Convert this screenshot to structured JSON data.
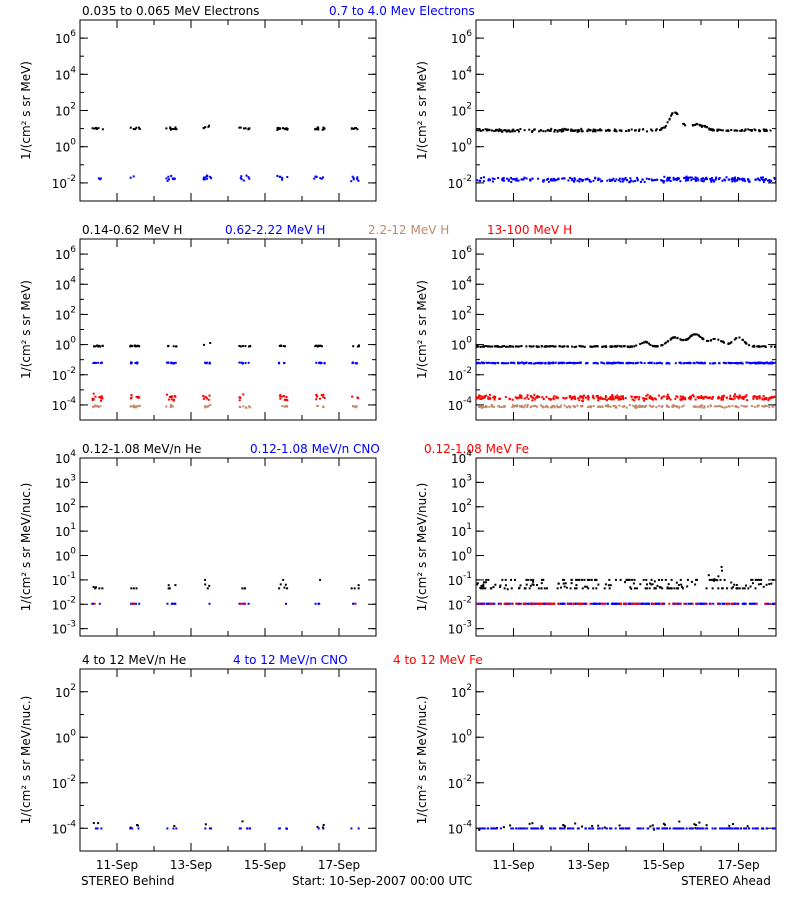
{
  "figure": {
    "footer": {
      "left": "STEREO Behind",
      "center": "Start: 10-Sep-2007 00:00 UTC",
      "right": "STEREO Ahead"
    },
    "xticks": [
      "11-Sep",
      "13-Sep",
      "15-Sep",
      "17-Sep"
    ]
  },
  "chart_data": [
    {
      "type": "scatter",
      "row": 1,
      "spacecraft": "STEREO Behind",
      "ylabel": "1/(cm² s sr MeV)",
      "yscale": "log",
      "ylim": [
        0.001,
        10000000
      ],
      "yticks": [
        {
          "v": 0.01,
          "b": "10",
          "e": "-2"
        },
        {
          "v": 1,
          "b": "10",
          "e": "0"
        },
        {
          "v": 100,
          "b": "10",
          "e": "2"
        },
        {
          "v": 10000,
          "b": "10",
          "e": "4"
        },
        {
          "v": 1000000,
          "b": "10",
          "e": "6"
        }
      ],
      "x_unit": "days since start",
      "xlim": [
        0,
        8
      ],
      "xticks": [
        1,
        3,
        5,
        7
      ],
      "legend": [
        {
          "name": "0.035 to 0.065 MeV Electrons",
          "color": "#000000"
        },
        {
          "name": "0.7 to 4.0 Mev Electrons",
          "color": "#0000ff"
        }
      ],
      "series": [
        {
          "name": "0.035 to 0.065 MeV Electrons",
          "color": "#000000",
          "level": 10,
          "spread": 0.12,
          "density": 26,
          "gaps": true,
          "bumps": [
            {
              "x": 3.7,
              "h": 0.25,
              "w": 0.25
            }
          ]
        },
        {
          "name": "0.7 to 4.0 Mev Electrons",
          "color": "#0000ff",
          "level": 0.018,
          "spread": 0.22,
          "density": 26,
          "gaps": true
        }
      ]
    },
    {
      "type": "scatter",
      "row": 1,
      "spacecraft": "STEREO Ahead",
      "ylabel": "1/(cm² s sr MeV)",
      "yscale": "log",
      "ylim": [
        0.001,
        10000000
      ],
      "yticks": [
        {
          "v": 0.01,
          "b": "10",
          "e": "-2"
        },
        {
          "v": 1,
          "b": "10",
          "e": "0"
        },
        {
          "v": 100,
          "b": "10",
          "e": "2"
        },
        {
          "v": 10000,
          "b": "10",
          "e": "4"
        },
        {
          "v": 1000000,
          "b": "10",
          "e": "6"
        }
      ],
      "x_unit": "days since start",
      "xlim": [
        0,
        8
      ],
      "xticks": [
        1,
        3,
        5,
        7
      ],
      "series": [
        {
          "name": "0.035 to 0.065 MeV Electrons",
          "color": "#000000",
          "level": 8,
          "spread": 0.1,
          "density": 30,
          "gaps": false,
          "bumps": [
            {
              "x": 5.3,
              "h": 1.0,
              "w": 0.2
            },
            {
              "x": 5.9,
              "h": 0.3,
              "w": 0.3
            }
          ]
        },
        {
          "name": "0.7 to 4.0 Mev Electrons",
          "color": "#0000ff",
          "level": 0.015,
          "spread": 0.2,
          "density": 34,
          "gaps": false
        }
      ]
    },
    {
      "type": "scatter",
      "row": 2,
      "spacecraft": "STEREO Behind",
      "ylabel": "1/(cm² s sr MeV)",
      "yscale": "log",
      "ylim": [
        1e-05,
        10000000
      ],
      "yticks": [
        {
          "v": 0.0001,
          "b": "10",
          "e": "-4"
        },
        {
          "v": 0.01,
          "b": "10",
          "e": "-2"
        },
        {
          "v": 1,
          "b": "10",
          "e": "0"
        },
        {
          "v": 100,
          "b": "10",
          "e": "2"
        },
        {
          "v": 10000,
          "b": "10",
          "e": "4"
        },
        {
          "v": 1000000,
          "b": "10",
          "e": "6"
        }
      ],
      "x_unit": "days since start",
      "xlim": [
        0,
        8
      ],
      "xticks": [
        1,
        3,
        5,
        7
      ],
      "legend": [
        {
          "name": "0.14-0.62 MeV H",
          "color": "#000000"
        },
        {
          "name": "0.62-2.22 MeV H",
          "color": "#0000ff"
        },
        {
          "name": "2.2-12 MeV H",
          "color": "#c08a6a"
        },
        {
          "name": "13-100 MeV H",
          "color": "#ff0000"
        }
      ],
      "series": [
        {
          "name": "0.14-0.62 MeV H",
          "color": "#000000",
          "level": 0.8,
          "spread": 0.06,
          "density": 26,
          "gaps": true,
          "bumps": [
            {
              "x": 3.7,
              "h": 0.35,
              "w": 0.25
            }
          ]
        },
        {
          "name": "0.62-2.22 MeV H",
          "color": "#0000ff",
          "level": 0.06,
          "spread": 0.06,
          "density": 26,
          "gaps": true
        },
        {
          "name": "2.2-12 MeV H",
          "color": "#c08a6a",
          "level": 8e-05,
          "spread": 0.12,
          "density": 20,
          "gaps": true
        },
        {
          "name": "13-100 MeV H",
          "color": "#ff0000",
          "level": 0.0003,
          "spread": 0.3,
          "density": 26,
          "gaps": true
        }
      ]
    },
    {
      "type": "scatter",
      "row": 2,
      "spacecraft": "STEREO Ahead",
      "ylabel": "1/(cm² s sr MeV)",
      "yscale": "log",
      "ylim": [
        1e-05,
        10000000
      ],
      "yticks": [
        {
          "v": 0.0001,
          "b": "10",
          "e": "-4"
        },
        {
          "v": 0.01,
          "b": "10",
          "e": "-2"
        },
        {
          "v": 1,
          "b": "10",
          "e": "0"
        },
        {
          "v": 100,
          "b": "10",
          "e": "2"
        },
        {
          "v": 10000,
          "b": "10",
          "e": "4"
        },
        {
          "v": 1000000,
          "b": "10",
          "e": "6"
        }
      ],
      "x_unit": "days since start",
      "xlim": [
        0,
        8
      ],
      "xticks": [
        1,
        3,
        5,
        7
      ],
      "series": [
        {
          "name": "0.14-0.62 MeV H",
          "color": "#000000",
          "level": 0.75,
          "spread": 0.05,
          "density": 30,
          "gaps": false,
          "bumps": [
            {
              "x": 4.5,
              "h": 0.3,
              "w": 0.15
            },
            {
              "x": 5.3,
              "h": 0.6,
              "w": 0.25
            },
            {
              "x": 5.85,
              "h": 0.8,
              "w": 0.25
            },
            {
              "x": 6.4,
              "h": 0.5,
              "w": 0.25
            },
            {
              "x": 7.0,
              "h": 0.6,
              "w": 0.2
            }
          ]
        },
        {
          "name": "0.62-2.22 MeV H",
          "color": "#0000ff",
          "level": 0.06,
          "spread": 0.05,
          "density": 34,
          "gaps": false
        },
        {
          "name": "2.2-12 MeV H",
          "color": "#c08a6a",
          "level": 8e-05,
          "spread": 0.12,
          "density": 26,
          "gaps": false
        },
        {
          "name": "13-100 MeV H",
          "color": "#ff0000",
          "level": 0.0003,
          "spread": 0.25,
          "density": 38,
          "gaps": false
        }
      ]
    },
    {
      "type": "scatter",
      "row": 3,
      "spacecraft": "STEREO Behind",
      "ylabel": "1/(cm² s sr MeV/nuc.)",
      "yscale": "log",
      "ylim": [
        0.0005,
        10000
      ],
      "yticks": [
        {
          "v": 0.001,
          "b": "10",
          "e": "-3"
        },
        {
          "v": 0.01,
          "b": "10",
          "e": "-2"
        },
        {
          "v": 0.1,
          "b": "10",
          "e": "-1"
        },
        {
          "v": 1,
          "b": "10",
          "e": "0"
        },
        {
          "v": 10,
          "b": "10",
          "e": "1"
        },
        {
          "v": 100,
          "b": "10",
          "e": "2"
        },
        {
          "v": 1000,
          "b": "10",
          "e": "3"
        },
        {
          "v": 10000,
          "b": "10",
          "e": "4"
        }
      ],
      "x_unit": "days since start",
      "xlim": [
        0,
        8
      ],
      "xticks": [
        1,
        3,
        5,
        7
      ],
      "legend": [
        {
          "name": "0.12-1.08 MeV/n He",
          "color": "#000000"
        },
        {
          "name": "0.12-1.08 MeV/n CNO",
          "color": "#0000ff"
        },
        {
          "name": "0.12-1.08 MeV Fe",
          "color": "#ff0000"
        }
      ],
      "series": [
        {
          "name": "0.12-1.08 MeV/n He",
          "color": "#000000",
          "level": 0.06,
          "spread": 0.18,
          "density": 14,
          "gaps": true,
          "lines": [
            0.045,
            0.1
          ]
        },
        {
          "name": "0.12-1.08 MeV/n CNO",
          "color": "#0000ff",
          "level": 0.0105,
          "spread": 0.0,
          "density": 14,
          "gaps": true
        },
        {
          "name": "0.12-1.08 MeV Fe",
          "color": "#ff0000",
          "level": 0.0105,
          "spread": 0.0,
          "density": 6,
          "gaps": true
        }
      ]
    },
    {
      "type": "scatter",
      "row": 3,
      "spacecraft": "STEREO Ahead",
      "ylabel": "1/(cm² s sr MeV/nuc.)",
      "yscale": "log",
      "ylim": [
        0.0005,
        10000
      ],
      "yticks": [
        {
          "v": 0.001,
          "b": "10",
          "e": "-3"
        },
        {
          "v": 0.01,
          "b": "10",
          "e": "-2"
        },
        {
          "v": 0.1,
          "b": "10",
          "e": "-1"
        },
        {
          "v": 1,
          "b": "10",
          "e": "0"
        },
        {
          "v": 10,
          "b": "10",
          "e": "1"
        },
        {
          "v": 100,
          "b": "10",
          "e": "2"
        },
        {
          "v": 1000,
          "b": "10",
          "e": "3"
        },
        {
          "v": 10000,
          "b": "10",
          "e": "4"
        }
      ],
      "x_unit": "days since start",
      "xlim": [
        0,
        8
      ],
      "xticks": [
        1,
        3,
        5,
        7
      ],
      "series": [
        {
          "name": "0.12-1.08 MeV/n He",
          "color": "#000000",
          "level": 0.06,
          "spread": 0.2,
          "density": 26,
          "gaps": false,
          "lines": [
            0.045,
            0.1
          ],
          "bumps": [
            {
              "x": 6.1,
              "h": 0.4,
              "w": 0.3
            },
            {
              "x": 6.6,
              "h": 0.7,
              "w": 0.15
            }
          ]
        },
        {
          "name": "0.12-1.08 MeV/n CNO",
          "color": "#0000ff",
          "level": 0.0105,
          "spread": 0.0,
          "density": 30,
          "gaps": false
        },
        {
          "name": "0.12-1.08 MeV Fe",
          "color": "#ff0000",
          "level": 0.0105,
          "spread": 0.0,
          "density": 12,
          "gaps": false
        }
      ]
    },
    {
      "type": "scatter",
      "row": 4,
      "spacecraft": "STEREO Behind",
      "ylabel": "1/(cm² s sr MeV/nuc.)",
      "yscale": "log",
      "ylim": [
        1e-05,
        1000
      ],
      "yticks": [
        {
          "v": 0.0001,
          "b": "10",
          "e": "-4"
        },
        {
          "v": 0.01,
          "b": "10",
          "e": "-2"
        },
        {
          "v": 1,
          "b": "10",
          "e": "0"
        },
        {
          "v": 100,
          "b": "10",
          "e": "2"
        }
      ],
      "x_unit": "days since start",
      "xlim": [
        0,
        8
      ],
      "xticks": [
        1,
        3,
        5,
        7
      ],
      "legend": [
        {
          "name": "4 to 12 MeV/n He",
          "color": "#000000"
        },
        {
          "name": "4 to 12 MeV/n CNO",
          "color": "#0000ff"
        },
        {
          "name": "4 to 12 MeV Fe",
          "color": "#ff0000"
        }
      ],
      "series": [
        {
          "name": "4 to 12 MeV/n He",
          "color": "#000000",
          "level": 0.00013,
          "spread": 0.25,
          "density": 3,
          "gaps": true
        },
        {
          "name": "4 to 12 MeV/n CNO",
          "color": "#0000ff",
          "level": 9.8e-05,
          "spread": 0.0,
          "density": 12,
          "gaps": true
        }
      ]
    },
    {
      "type": "scatter",
      "row": 4,
      "spacecraft": "STEREO Ahead",
      "ylabel": "1/(cm² s sr MeV/nuc.)",
      "yscale": "log",
      "ylim": [
        1e-05,
        1000
      ],
      "yticks": [
        {
          "v": 0.0001,
          "b": "10",
          "e": "-4"
        },
        {
          "v": 0.01,
          "b": "10",
          "e": "-2"
        },
        {
          "v": 1,
          "b": "10",
          "e": "0"
        },
        {
          "v": 100,
          "b": "10",
          "e": "2"
        }
      ],
      "x_unit": "days since start",
      "xlim": [
        0,
        8
      ],
      "xticks": [
        1,
        3,
        5,
        7
      ],
      "series": [
        {
          "name": "4 to 12 MeV/n He",
          "color": "#000000",
          "level": 0.00013,
          "spread": 0.25,
          "density": 4,
          "gaps": false
        },
        {
          "name": "4 to 12 MeV/n CNO",
          "color": "#0000ff",
          "level": 9.8e-05,
          "spread": 0.0,
          "density": 24,
          "gaps": false
        }
      ]
    }
  ]
}
